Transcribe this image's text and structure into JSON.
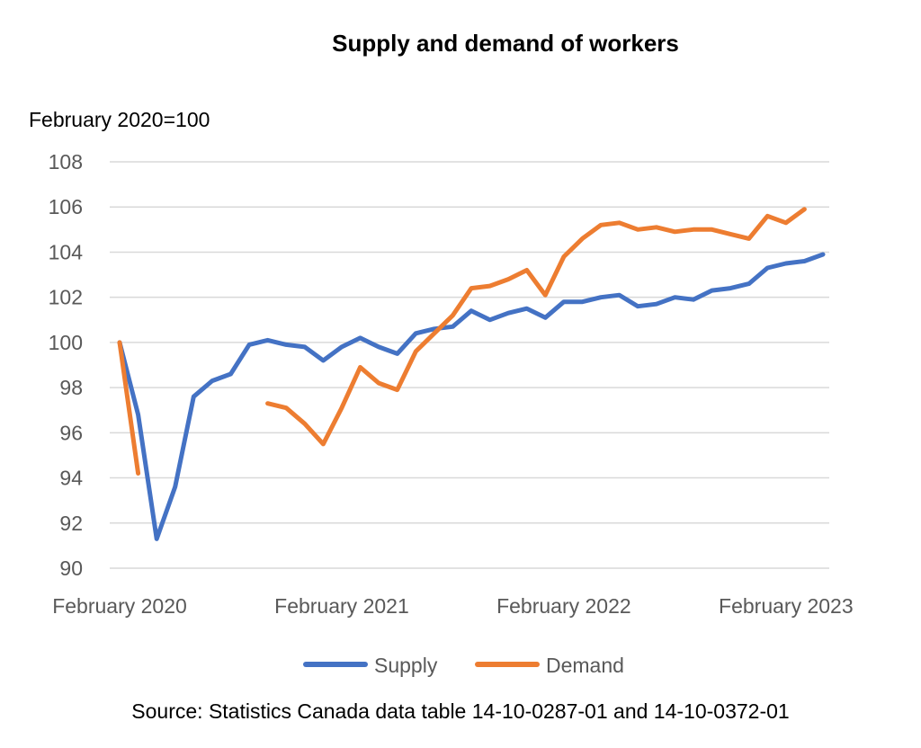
{
  "chart_data": {
    "type": "line",
    "title": "Supply and demand of workers",
    "ylabel": "February 2020=100",
    "xlabel": "",
    "ylim": [
      90,
      108
    ],
    "yticks": [
      90,
      92,
      94,
      96,
      98,
      100,
      102,
      104,
      106,
      108
    ],
    "x_tick_labels": [
      "February 2020",
      "February 2021",
      "February 2022",
      "February 2023"
    ],
    "grid": "horizontal",
    "legend_position": "bottom",
    "x": [
      "Feb 2020",
      "Mar 2020",
      "Apr 2020",
      "May 2020",
      "Jun 2020",
      "Jul 2020",
      "Aug 2020",
      "Sep 2020",
      "Oct 2020",
      "Nov 2020",
      "Dec 2020",
      "Jan 2021",
      "Feb 2021",
      "Mar 2021",
      "Apr 2021",
      "May 2021",
      "Jun 2021",
      "Jul 2021",
      "Aug 2021",
      "Sep 2021",
      "Oct 2021",
      "Nov 2021",
      "Dec 2021",
      "Jan 2022",
      "Feb 2022",
      "Mar 2022",
      "Apr 2022",
      "May 2022",
      "Jun 2022",
      "Jul 2022",
      "Aug 2022",
      "Sep 2022",
      "Oct 2022",
      "Nov 2022",
      "Dec 2022",
      "Jan 2023",
      "Feb 2023",
      "Mar 2023",
      "Apr 2023"
    ],
    "series": [
      {
        "name": "Supply",
        "color": "#4472c4",
        "values": [
          100.0,
          96.8,
          91.3,
          93.6,
          97.6,
          98.3,
          98.6,
          99.9,
          100.1,
          99.9,
          99.8,
          99.2,
          99.8,
          100.2,
          99.8,
          99.5,
          100.4,
          100.6,
          100.7,
          101.4,
          101.0,
          101.3,
          101.5,
          101.1,
          101.8,
          101.8,
          102.0,
          102.1,
          101.6,
          101.7,
          102.0,
          101.9,
          102.3,
          102.4,
          102.6,
          103.3,
          103.5,
          103.6,
          103.9
        ]
      },
      {
        "name": "Demand",
        "color": "#ed7d31",
        "values": [
          100.0,
          94.2,
          null,
          null,
          null,
          null,
          null,
          null,
          97.3,
          97.1,
          96.4,
          95.5,
          97.1,
          98.9,
          98.2,
          97.9,
          99.6,
          100.4,
          101.2,
          102.4,
          102.5,
          102.8,
          103.2,
          102.1,
          103.8,
          104.6,
          105.2,
          105.3,
          105.0,
          105.1,
          104.9,
          105.0,
          105.0,
          104.8,
          104.6,
          105.6,
          105.3,
          105.9,
          null
        ]
      }
    ]
  },
  "source_note": "Source: Statistics Canada data table 14-10-0287-01 and 14-10-0372-01"
}
